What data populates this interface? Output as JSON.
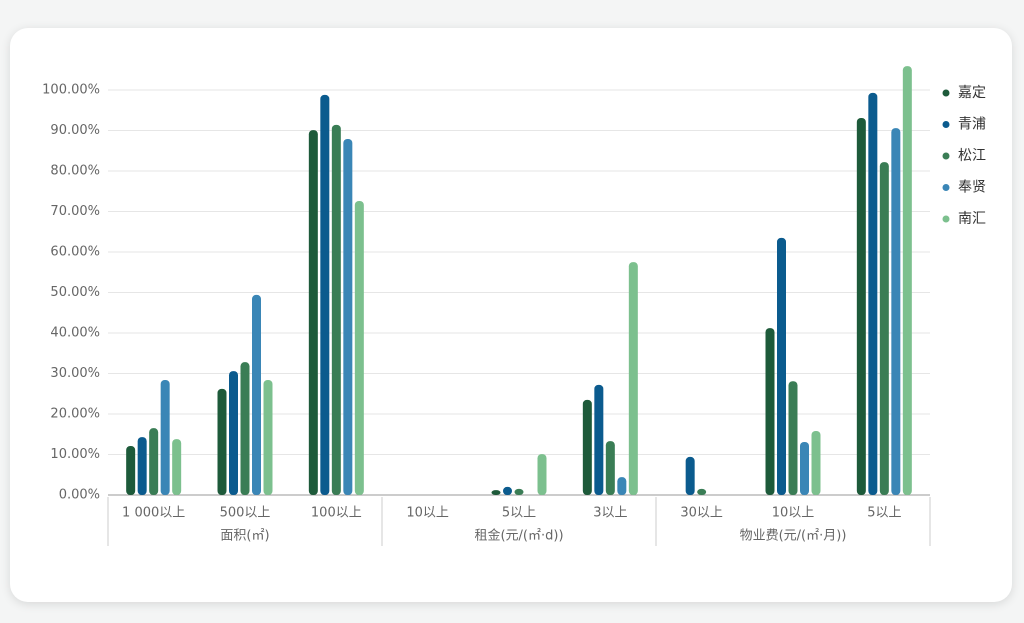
{
  "chart_data": {
    "type": "bar",
    "groups": [
      {
        "name": "面积(㎡)",
        "categories": [
          "1 000以上",
          "500以上",
          "100以上"
        ]
      },
      {
        "name": "租金(元/(㎡·d))",
        "categories": [
          "10以上",
          "5以上",
          "3以上"
        ]
      },
      {
        "name": "物业费(元/(㎡·月))",
        "categories": [
          "30以上",
          "10以上",
          "5以上"
        ]
      }
    ],
    "series": [
      {
        "name": "嘉定",
        "color": "#1d5a3a",
        "values": [
          12.1,
          26.2,
          90.1,
          0,
          1.2,
          23.5,
          0,
          41.2,
          93.1
        ]
      },
      {
        "name": "青浦",
        "color": "#0b5b8e",
        "values": [
          14.3,
          30.6,
          98.8,
          0,
          2.0,
          27.2,
          9.4,
          63.5,
          99.3
        ]
      },
      {
        "name": "松江",
        "color": "#3a7d55",
        "values": [
          16.5,
          32.8,
          91.4,
          0,
          1.5,
          13.3,
          1.5,
          28.1,
          82.2
        ]
      },
      {
        "name": "奉贤",
        "color": "#3a86b6",
        "values": [
          28.4,
          49.4,
          87.9,
          0,
          0,
          4.4,
          0,
          13.1,
          90.6
        ]
      },
      {
        "name": "南汇",
        "color": "#7cc08e",
        "values": [
          13.8,
          28.4,
          72.6,
          0,
          10.1,
          57.5,
          0,
          15.8,
          105.9
        ]
      }
    ],
    "ylim": [
      0,
      106
    ],
    "yticks": [
      {
        "value": 0,
        "label": "0.00%"
      },
      {
        "value": 10,
        "label": "10.00%"
      },
      {
        "value": 20,
        "label": "20.00%"
      },
      {
        "value": 30,
        "label": "30.00%"
      },
      {
        "value": 40,
        "label": "40.00%"
      },
      {
        "value": 50,
        "label": "50.00%"
      },
      {
        "value": 60,
        "label": "60.00%"
      },
      {
        "value": 70,
        "label": "70.00%"
      },
      {
        "value": 80,
        "label": "80.00%"
      },
      {
        "value": 90,
        "label": "90.00%"
      },
      {
        "value": 100,
        "label": "100.00%"
      }
    ],
    "grid": true,
    "legend": "right"
  }
}
